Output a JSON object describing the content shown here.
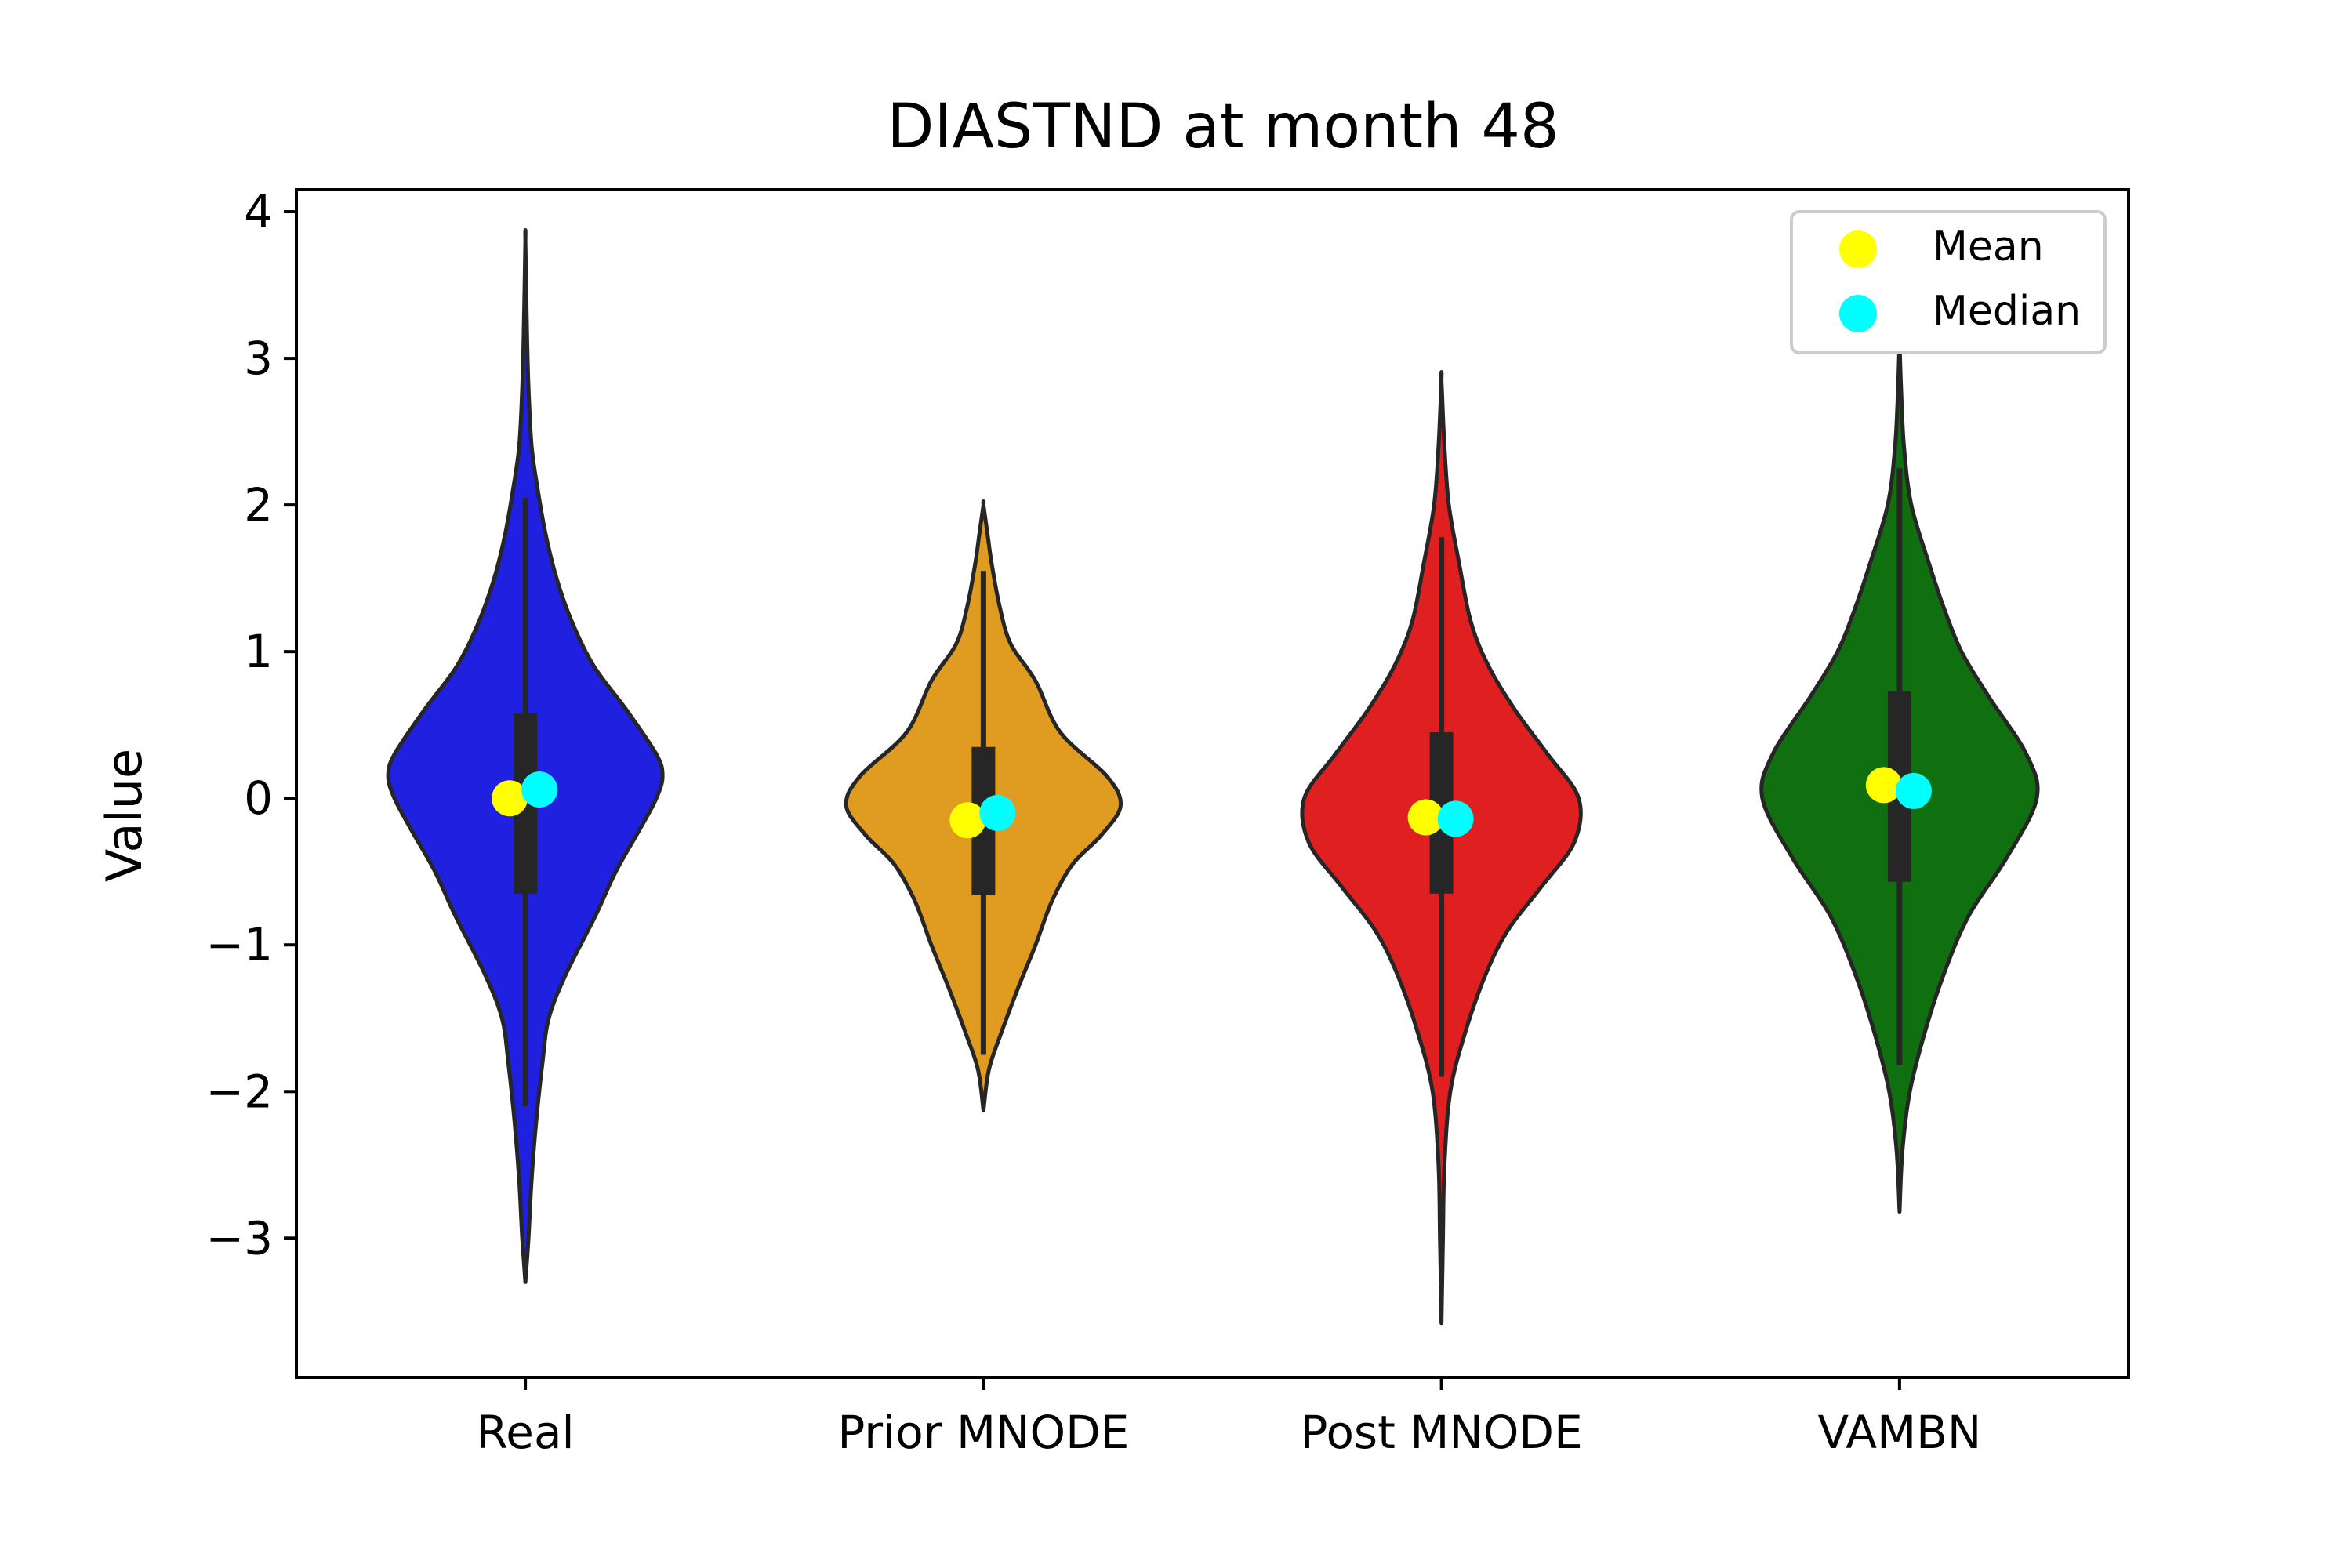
{
  "chart_data": {
    "type": "violin",
    "title": "DIASTND at month 48",
    "xlabel": "",
    "ylabel": "Value",
    "ylim": [
      -3.95,
      4.15
    ],
    "yticks": [
      -3,
      -2,
      -1,
      0,
      1,
      2,
      3,
      4
    ],
    "ytick_labels": [
      "−3",
      "−2",
      "−1",
      "0",
      "1",
      "2",
      "3",
      "4"
    ],
    "legend": {
      "position": "top-right",
      "entries": [
        {
          "label": "Mean",
          "color": "#ffff00"
        },
        {
          "label": "Median",
          "color": "#00ffff"
        }
      ]
    },
    "categories": [
      "Real",
      "Prior MNODE",
      "Post MNODE",
      "VAMBN"
    ],
    "series": [
      {
        "category": "Real",
        "color": "#2020e0",
        "min": -3.3,
        "max": 3.8,
        "q1": -0.65,
        "q3": 0.58,
        "whisker_low": -2.1,
        "whisker_high": 2.05,
        "mean": 0.0,
        "median": 0.06,
        "density": [
          [
            -3.3,
            0.0
          ],
          [
            -3.0,
            0.02
          ],
          [
            -2.6,
            0.04
          ],
          [
            -2.2,
            0.07
          ],
          [
            -1.8,
            0.11
          ],
          [
            -1.5,
            0.15
          ],
          [
            -1.2,
            0.26
          ],
          [
            -0.8,
            0.45
          ],
          [
            -0.5,
            0.58
          ],
          [
            -0.2,
            0.74
          ],
          [
            0.0,
            0.84
          ],
          [
            0.15,
            0.88
          ],
          [
            0.3,
            0.84
          ],
          [
            0.6,
            0.65
          ],
          [
            0.9,
            0.44
          ],
          [
            1.2,
            0.3
          ],
          [
            1.5,
            0.2
          ],
          [
            1.8,
            0.13
          ],
          [
            2.1,
            0.08
          ],
          [
            2.4,
            0.04
          ],
          [
            2.8,
            0.02
          ],
          [
            3.2,
            0.01
          ],
          [
            3.8,
            0.0
          ]
        ]
      },
      {
        "category": "Prior MNODE",
        "color": "#e09c20",
        "min": -2.13,
        "max": 2.0,
        "q1": -0.66,
        "q3": 0.35,
        "whisker_low": -1.75,
        "whisker_high": 1.55,
        "mean": -0.15,
        "median": -0.1,
        "density": [
          [
            -2.13,
            0.0
          ],
          [
            -1.85,
            0.04
          ],
          [
            -1.6,
            0.13
          ],
          [
            -1.3,
            0.25
          ],
          [
            -1.0,
            0.38
          ],
          [
            -0.7,
            0.5
          ],
          [
            -0.45,
            0.65
          ],
          [
            -0.25,
            0.86
          ],
          [
            -0.05,
            1.0
          ],
          [
            0.15,
            0.9
          ],
          [
            0.45,
            0.56
          ],
          [
            0.8,
            0.38
          ],
          [
            1.05,
            0.2
          ],
          [
            1.3,
            0.12
          ],
          [
            1.6,
            0.06
          ],
          [
            1.8,
            0.03
          ],
          [
            2.0,
            0.0
          ]
        ]
      },
      {
        "category": "Post MNODE",
        "color": "#e02020",
        "min": -3.58,
        "max": 2.85,
        "q1": -0.65,
        "q3": 0.45,
        "whisker_low": -1.9,
        "whisker_high": 1.78,
        "mean": -0.13,
        "median": -0.14,
        "density": [
          [
            -3.58,
            0.0
          ],
          [
            -3.0,
            0.01
          ],
          [
            -2.5,
            0.02
          ],
          [
            -2.0,
            0.06
          ],
          [
            -1.6,
            0.16
          ],
          [
            -1.2,
            0.3
          ],
          [
            -0.9,
            0.45
          ],
          [
            -0.6,
            0.68
          ],
          [
            -0.3,
            0.9
          ],
          [
            0.0,
            0.93
          ],
          [
            0.3,
            0.72
          ],
          [
            0.6,
            0.5
          ],
          [
            0.9,
            0.32
          ],
          [
            1.2,
            0.2
          ],
          [
            1.6,
            0.12
          ],
          [
            2.0,
            0.05
          ],
          [
            2.4,
            0.02
          ],
          [
            2.85,
            0.0
          ]
        ]
      },
      {
        "category": "VAMBN",
        "color": "#107010",
        "min": -2.82,
        "max": 3.12,
        "q1": -0.57,
        "q3": 0.73,
        "whisker_low": -1.82,
        "whisker_high": 2.25,
        "mean": 0.09,
        "median": 0.05,
        "density": [
          [
            -2.82,
            0.0
          ],
          [
            -2.4,
            0.02
          ],
          [
            -2.0,
            0.07
          ],
          [
            -1.6,
            0.17
          ],
          [
            -1.2,
            0.3
          ],
          [
            -0.8,
            0.47
          ],
          [
            -0.4,
            0.73
          ],
          [
            0.0,
            0.93
          ],
          [
            0.3,
            0.86
          ],
          [
            0.7,
            0.6
          ],
          [
            1.0,
            0.42
          ],
          [
            1.3,
            0.3
          ],
          [
            1.6,
            0.2
          ],
          [
            2.0,
            0.08
          ],
          [
            2.4,
            0.03
          ],
          [
            2.8,
            0.01
          ],
          [
            3.12,
            0.0
          ]
        ]
      }
    ]
  }
}
